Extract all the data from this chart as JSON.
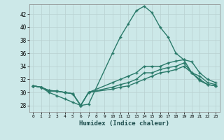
{
  "xlabel": "Humidex (Indice chaleur)",
  "bg_color": "#cce8e8",
  "grid_color": "#b8d0d0",
  "line_color": "#2a7a6a",
  "xlim": [
    -0.5,
    23.5
  ],
  "ylim": [
    27,
    43.5
  ],
  "yticks": [
    28,
    30,
    32,
    34,
    36,
    38,
    40,
    42
  ],
  "xticks": [
    0,
    1,
    2,
    3,
    4,
    5,
    6,
    7,
    8,
    9,
    10,
    11,
    12,
    13,
    14,
    15,
    16,
    17,
    18,
    19,
    20,
    21,
    22,
    23
  ],
  "lines": [
    {
      "x": [
        0,
        1,
        2,
        3,
        4,
        5,
        6,
        7,
        10,
        11,
        12,
        13,
        14,
        15,
        16,
        17,
        18,
        19,
        20,
        21,
        22,
        23
      ],
      "y": [
        31,
        30.8,
        30.0,
        29.5,
        29.0,
        28.5,
        28.0,
        28.2,
        36.0,
        38.5,
        40.5,
        42.5,
        43.2,
        42.2,
        40.0,
        38.5,
        36.0,
        35.0,
        34.7,
        33.0,
        32.0,
        31.5
      ]
    },
    {
      "x": [
        0,
        1,
        2,
        3,
        4,
        5,
        6,
        7,
        10,
        11,
        12,
        13,
        14,
        15,
        16,
        17,
        18,
        19,
        20,
        21,
        22,
        23
      ],
      "y": [
        31,
        30.8,
        30.2,
        30.2,
        30.0,
        29.8,
        28.0,
        30.0,
        31.5,
        32.0,
        32.5,
        33.0,
        34.0,
        34.0,
        34.0,
        34.5,
        34.8,
        35.0,
        33.0,
        32.5,
        31.5,
        31.2
      ]
    },
    {
      "x": [
        0,
        1,
        2,
        3,
        4,
        5,
        6,
        7,
        10,
        11,
        12,
        13,
        14,
        15,
        16,
        17,
        18,
        19,
        20,
        21,
        22,
        23
      ],
      "y": [
        31,
        30.8,
        30.3,
        30.2,
        30.0,
        29.8,
        28.0,
        30.0,
        30.8,
        31.2,
        31.5,
        32.0,
        33.0,
        33.0,
        33.5,
        33.8,
        34.0,
        34.5,
        33.0,
        32.0,
        31.2,
        31.0
      ]
    },
    {
      "x": [
        0,
        1,
        2,
        3,
        4,
        5,
        6,
        7,
        10,
        11,
        12,
        13,
        14,
        15,
        16,
        17,
        18,
        19,
        20,
        21,
        22,
        23
      ],
      "y": [
        31,
        30.8,
        30.3,
        30.2,
        30.0,
        29.8,
        28.0,
        30.0,
        30.5,
        30.8,
        31.0,
        31.5,
        32.0,
        32.5,
        33.0,
        33.2,
        33.5,
        34.0,
        33.0,
        31.8,
        31.2,
        31.0
      ]
    }
  ]
}
